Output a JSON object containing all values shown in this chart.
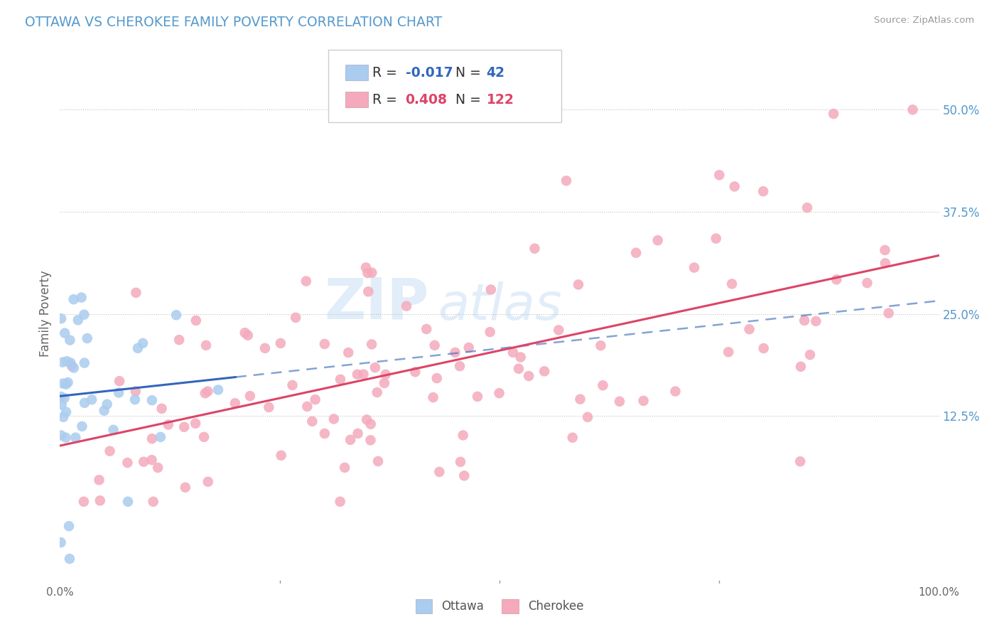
{
  "title": "OTTAWA VS CHEROKEE FAMILY POVERTY CORRELATION CHART",
  "source": "Source: ZipAtlas.com",
  "ylabel": "Family Poverty",
  "ytick_labels": [
    "12.5%",
    "25.0%",
    "37.5%",
    "50.0%"
  ],
  "ytick_values": [
    0.125,
    0.25,
    0.375,
    0.5
  ],
  "legend_ottawa": {
    "R": "-0.017",
    "N": "42",
    "color": "#aaccee",
    "line_color": "#3366bb"
  },
  "legend_cherokee": {
    "R": "0.408",
    "N": "122",
    "color": "#f4aabc",
    "line_color": "#dd4466"
  },
  "xlim": [
    0.0,
    1.0
  ],
  "ylim": [
    -0.08,
    0.58
  ],
  "background_color": "#ffffff",
  "grid_color": "#bbbbbb",
  "watermark_zip": "ZIP",
  "watermark_atlas": "atlas",
  "bottom_labels": [
    "Ottawa",
    "Cherokee"
  ]
}
